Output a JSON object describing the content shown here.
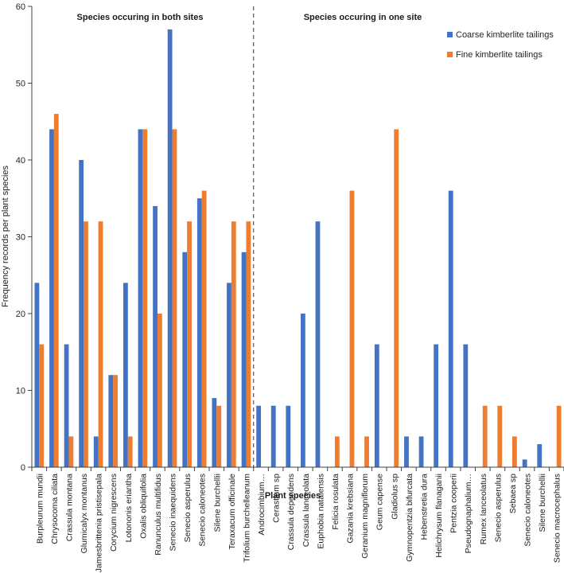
{
  "chart_data": {
    "type": "bar",
    "xlabel": "Plant species",
    "ylabel": "Frequency records per plant species",
    "ylim": [
      0,
      60
    ],
    "yticks": [
      0,
      10,
      20,
      30,
      40,
      50,
      60
    ],
    "grid": false,
    "legend_position": "top-right",
    "annotations": {
      "left_section": "Species occuring in both sites",
      "right_section": "Species occuring in one site"
    },
    "categories": [
      "Burpleurum mundii",
      "Chrysocoma ciliata",
      "Crassula montana",
      "Glumicalyx montanus",
      "Jamesbrittenia pristisepala",
      "Corycium nigrescens",
      "Lotononis eriantha",
      "Oxalis obliquifolia",
      "Ranunculus multifidus",
      "Senecio inaequidens",
      "Senecio asperulus",
      "Senecio caloneotes",
      "Silene burchellii",
      "Teraxacum officinale",
      "Trifolium burchelleanum",
      "Androcimbium…",
      "Cerastium sp",
      "Crassula dependens",
      "Crassula lanceolata",
      "Euphobia natalensis",
      "Felicia rosulata",
      "Gazania krebsiana",
      "Geranium magniflorum",
      "Geum capense",
      "Gladiolus sp",
      "Gymnopentzia bifurcata",
      "Hebenstretia dura",
      "Helichrysum flanaganii",
      "Pentzia cooperii",
      "Pseudognaphalium…",
      "Rumex lanceolatus",
      "Senecio asperulus",
      "Sebaea sp",
      "Senecio caloneotes",
      "Silene burchellii",
      "Senecio macrocephalus"
    ],
    "series": [
      {
        "name": "Coarse kimberlite tailings",
        "color": "#4472C4",
        "values": [
          24,
          44,
          16,
          40,
          4,
          12,
          24,
          44,
          34,
          57,
          28,
          35,
          9,
          24,
          28,
          8,
          8,
          8,
          20,
          32,
          0,
          0,
          0,
          16,
          0,
          4,
          4,
          16,
          36,
          16,
          0,
          0,
          0,
          1,
          3,
          0
        ]
      },
      {
        "name": "Fine kimberlite tailings",
        "color": "#ED7D31",
        "values": [
          16,
          46,
          4,
          32,
          32,
          12,
          4,
          44,
          20,
          44,
          32,
          36,
          8,
          32,
          32,
          0,
          0,
          0,
          0,
          0,
          4,
          36,
          4,
          0,
          44,
          0,
          0,
          0,
          0,
          0,
          8,
          8,
          4,
          0,
          0,
          8
        ]
      }
    ]
  }
}
